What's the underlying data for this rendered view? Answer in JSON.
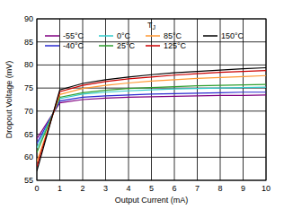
{
  "chart_data": {
    "type": "line",
    "x_label": "Output Current (mA)",
    "y_label": "Dropout Voltage (mV)",
    "legend_title": "TJ",
    "x": [
      0,
      1,
      2,
      3,
      4,
      5,
      6,
      7,
      8,
      9,
      10
    ],
    "xlim": [
      0,
      10
    ],
    "xticks": [
      0,
      1,
      2,
      3,
      4,
      5,
      6,
      7,
      8,
      9,
      10
    ],
    "ylim": [
      55,
      90
    ],
    "yticks": [
      55,
      60,
      65,
      70,
      75,
      80,
      85,
      90
    ],
    "grid": true,
    "legend": "top",
    "series": [
      {
        "name": "-55°C",
        "color": "#800080",
        "values": [
          64,
          71.8,
          72.5,
          72.8,
          73.0,
          73.1,
          73.2,
          73.3,
          73.4,
          73.4,
          73.5
        ]
      },
      {
        "name": "-40°C",
        "color": "#2a2ad0",
        "values": [
          63,
          72.2,
          73.0,
          73.3,
          73.5,
          73.7,
          73.8,
          73.9,
          74.0,
          74.1,
          74.1
        ]
      },
      {
        "name": "0°C",
        "color": "#33cccc",
        "values": [
          62,
          72.7,
          73.7,
          74.1,
          74.4,
          74.6,
          74.8,
          74.9,
          75.0,
          75.1,
          75.2
        ]
      },
      {
        "name": "25°C",
        "color": "#2e9e2e",
        "values": [
          61,
          73.0,
          74.0,
          74.5,
          74.9,
          75.1,
          75.3,
          75.5,
          75.6,
          75.7,
          75.8
        ]
      },
      {
        "name": "85°C",
        "color": "#ff9933",
        "values": [
          59,
          73.6,
          74.9,
          75.6,
          76.1,
          76.5,
          76.8,
          77.1,
          77.3,
          77.5,
          77.7
        ]
      },
      {
        "name": "125°C",
        "color": "#cc0000",
        "values": [
          58,
          74.2,
          75.6,
          76.4,
          77.0,
          77.4,
          77.8,
          78.1,
          78.4,
          78.6,
          78.8
        ]
      },
      {
        "name": "150°C",
        "color": "#000000",
        "values": [
          57,
          74.6,
          76.0,
          76.8,
          77.4,
          77.9,
          78.3,
          78.6,
          78.9,
          79.2,
          79.4
        ]
      }
    ]
  }
}
